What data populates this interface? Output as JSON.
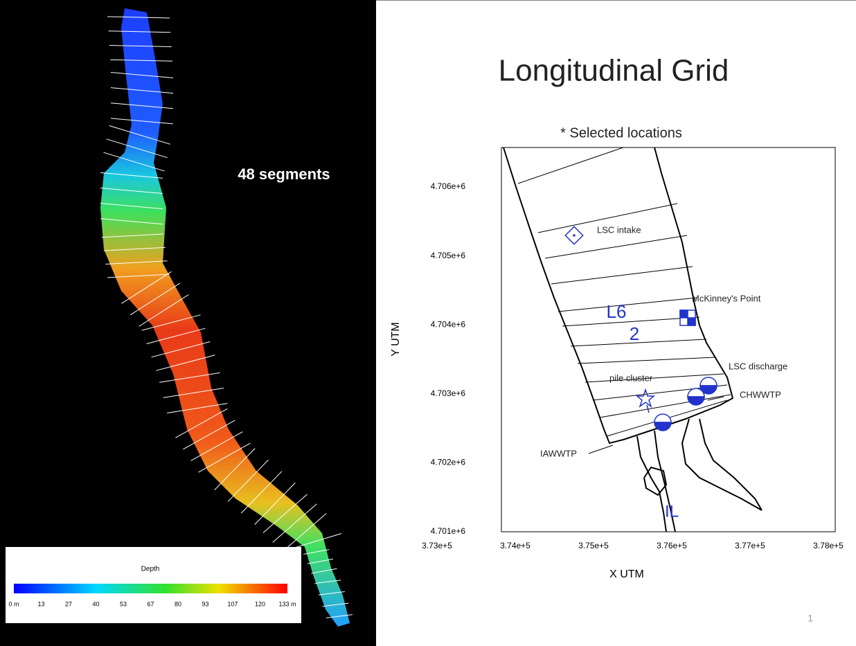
{
  "slide": {
    "title": "Longitudinal Grid",
    "page_number": "1"
  },
  "left_panel": {
    "annotation": "48 segments",
    "legend": {
      "title": "Depth",
      "labels": [
        "0 m",
        "13",
        "27",
        "40",
        "53",
        "67",
        "80",
        "93",
        "107",
        "120",
        "133 m"
      ]
    }
  },
  "right_panel": {
    "subtitle": "* Selected locations",
    "x_axis_label": "X UTM",
    "y_axis_label": "Y UTM",
    "xticks": [
      "3.73e+5",
      "3.74e+5",
      "3.75e+5",
      "3.76e+5",
      "3.77e+5",
      "3.78e+5"
    ],
    "yticks": [
      "4.706e+6",
      "4.705e+6",
      "4.704e+6",
      "4.703e+6",
      "4.702e+6",
      "4.701e+6"
    ],
    "labels": {
      "lsc_intake": "LSC intake",
      "mckinneys_point": "McKinney's Point",
      "l6": "L6",
      "two": "2",
      "lsc_discharge": "LSC discharge",
      "pile_cluster": "pile cluster",
      "chwwtp": "CHWWTP",
      "iawwtp": "IAWWTP",
      "il": "IL"
    }
  }
}
